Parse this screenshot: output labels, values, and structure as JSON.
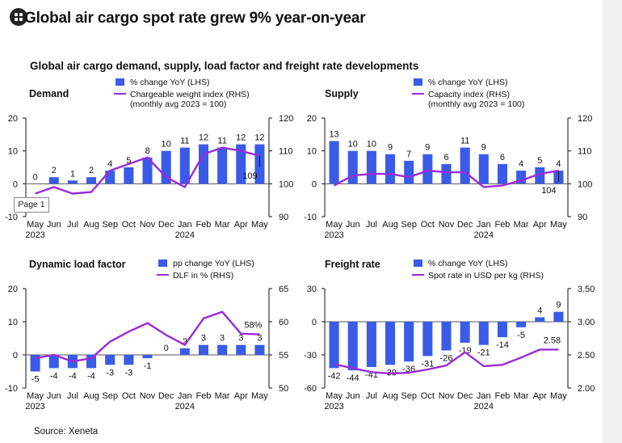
{
  "headline": "Global air cargo spot rate grew 9% year-on-year",
  "subtitle": "Global air cargo demand, supply, load factor and freight rate developments",
  "source": "Source: Xeneta",
  "page_badge": "Page 1",
  "colors": {
    "bar": "#3a5be8",
    "line": "#9a2bd6",
    "axis": "#111111",
    "baseline": "#555555",
    "background": "#ffffff"
  },
  "chart_data": [
    {
      "type": "bar",
      "panel_title": "Demand",
      "categories": [
        "May",
        "Jun",
        "Jul",
        "Aug",
        "Sep",
        "Oct",
        "Nov",
        "Dec",
        "Jan",
        "Feb",
        "Mar",
        "Apr",
        "May"
      ],
      "year_labels": [
        {
          "label": "2023",
          "index": 0
        },
        {
          "label": "2024",
          "index": 8
        }
      ],
      "series": [
        {
          "name": "% change YoY (LHS)",
          "axis": "left",
          "type": "bar",
          "values": [
            0,
            2,
            1,
            2,
            4,
            5,
            8,
            10,
            11,
            12,
            11,
            12,
            12
          ],
          "value_labels": [
            "0",
            "2",
            "1",
            "2",
            "4",
            "5",
            "8",
            "10",
            "11",
            "12",
            "11",
            "12",
            "12"
          ]
        },
        {
          "name": "Chargeable weight index (RHS)\n(monthly avg 2023 = 100)",
          "axis": "right",
          "type": "line",
          "values": [
            97,
            99,
            97,
            97.5,
            104,
            106,
            108,
            102,
            99,
            109,
            111,
            110,
            108.5
          ]
        }
      ],
      "end_label": "109",
      "ylim_left": [
        -10,
        20
      ],
      "yticks_left": [
        -10,
        0,
        10,
        20
      ],
      "ylim_right": [
        90,
        120
      ],
      "yticks_right": [
        90,
        100,
        110,
        120
      ]
    },
    {
      "type": "bar",
      "panel_title": "Supply",
      "categories": [
        "May",
        "Jun",
        "Jul",
        "Aug",
        "Sep",
        "Oct",
        "Nov",
        "Dec",
        "Jan",
        "Feb",
        "Mar",
        "Apr",
        "May"
      ],
      "year_labels": [
        {
          "label": "2023",
          "index": 0
        },
        {
          "label": "2024",
          "index": 8
        }
      ],
      "series": [
        {
          "name": "% change YoY (LHS)",
          "axis": "left",
          "type": "bar",
          "values": [
            13,
            10,
            10,
            9,
            7,
            9,
            6,
            11,
            9,
            6,
            4,
            5,
            4
          ],
          "value_labels": [
            "13",
            "10",
            "10",
            "9",
            "7",
            "9",
            "6",
            "11",
            "9",
            "6",
            "4",
            "5",
            "4"
          ]
        },
        {
          "name": "Capacity index (RHS)\n(monthly avg 2023 = 100)",
          "axis": "right",
          "type": "line",
          "values": [
            99.5,
            102.5,
            103,
            103,
            102,
            104,
            103.5,
            103.5,
            99,
            99.5,
            101,
            103,
            104
          ]
        }
      ],
      "end_label": "104",
      "ylim_left": [
        -10,
        20
      ],
      "yticks_left": [
        -10,
        0,
        10,
        20
      ],
      "ylim_right": [
        90,
        120
      ],
      "yticks_right": [
        90,
        100,
        110,
        120
      ]
    },
    {
      "type": "bar",
      "panel_title": "Dynamic load factor",
      "categories": [
        "May",
        "Jun",
        "Jul",
        "Aug",
        "Sep",
        "Oct",
        "Nov",
        "Dec",
        "Jan",
        "Feb",
        "Mar",
        "Apr",
        "May"
      ],
      "year_labels": [
        {
          "label": "2023",
          "index": 0
        },
        {
          "label": "2024",
          "index": 8
        }
      ],
      "series": [
        {
          "name": "pp change YoY (LHS)",
          "axis": "left",
          "type": "bar",
          "values": [
            -5,
            -4,
            -4,
            -4,
            -3,
            -3,
            -1,
            0,
            2,
            3,
            3,
            3,
            3
          ],
          "value_labels": [
            "-5",
            "-4",
            "-4",
            "-4",
            "-3",
            "-3",
            "-1",
            "0",
            "2",
            "3",
            "3",
            "3",
            "3"
          ]
        },
        {
          "name": "DLF in % (RHS)",
          "axis": "right",
          "type": "line",
          "values": [
            54.5,
            55,
            54,
            54.5,
            57,
            58.5,
            59.8,
            58,
            56.5,
            60.5,
            61.5,
            58.2,
            58.1
          ]
        }
      ],
      "end_label": "58%",
      "ylim_left": [
        -10,
        20
      ],
      "yticks_left": [
        -10,
        0,
        10,
        20
      ],
      "ylim_right": [
        50,
        65
      ],
      "yticks_right": [
        50,
        55,
        60,
        65
      ]
    },
    {
      "type": "bar",
      "panel_title": "Freight rate",
      "categories": [
        "May",
        "Jun",
        "Jul",
        "Aug",
        "Sep",
        "Oct",
        "Nov",
        "Dec",
        "Jan",
        "Feb",
        "Mar",
        "Apr",
        "May"
      ],
      "year_labels": [
        {
          "label": "2023",
          "index": 0
        },
        {
          "label": "2024",
          "index": 8
        }
      ],
      "series": [
        {
          "name": "% change YoY (LHS)",
          "axis": "left",
          "type": "bar",
          "values": [
            -42,
            -44,
            -41,
            -39,
            -36,
            -31,
            -26,
            -19,
            -21,
            -14,
            -5,
            4,
            9
          ],
          "value_labels": [
            "-42",
            "-44",
            "-41",
            "-39",
            "-36",
            "-31",
            "-26",
            "-19",
            "-21",
            "-14",
            "-5",
            "4",
            "9"
          ]
        },
        {
          "name": "Spot rate in USD per kg (RHS)",
          "axis": "right",
          "type": "line",
          "values": [
            2.36,
            2.3,
            2.24,
            2.22,
            2.23,
            2.28,
            2.34,
            2.54,
            2.33,
            2.35,
            2.46,
            2.58,
            2.58
          ]
        }
      ],
      "end_label": "2.58",
      "ylim_left": [
        -60,
        30
      ],
      "yticks_left": [
        -60,
        -30,
        0,
        30
      ],
      "ylim_right": [
        2.0,
        3.5
      ],
      "yticks_right": [
        "2.00",
        "2.50",
        "3.00",
        "3.50"
      ]
    }
  ]
}
